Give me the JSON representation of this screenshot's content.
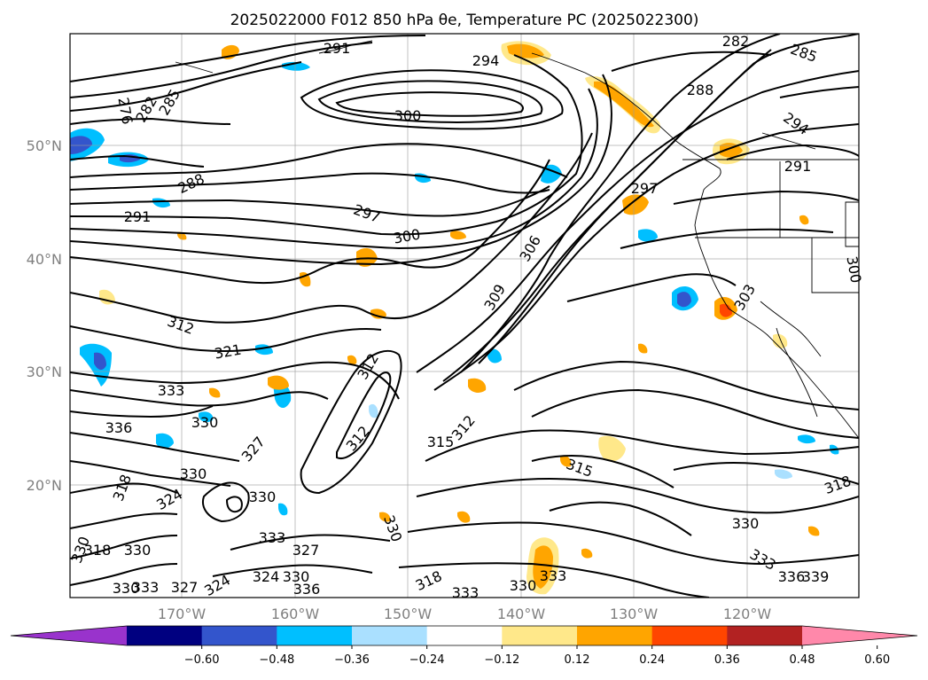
{
  "title": "2025022000 F012 850 hPa θe, Temperature PC (2025022300)",
  "map": {
    "lon_ticks": [
      "170°W",
      "160°W",
      "150°W",
      "140°W",
      "130°W",
      "120°W"
    ],
    "lat_ticks": [
      "50°N",
      "40°N",
      "30°N",
      "20°N"
    ],
    "contour_labels": [
      {
        "text": "291"
      },
      {
        "text": "282"
      },
      {
        "text": "285"
      },
      {
        "text": "294"
      },
      {
        "text": "288"
      },
      {
        "text": "300"
      },
      {
        "text": "294"
      },
      {
        "text": "276"
      },
      {
        "text": "282"
      },
      {
        "text": "285"
      },
      {
        "text": "291"
      },
      {
        "text": "288"
      },
      {
        "text": "291"
      },
      {
        "text": "297"
      },
      {
        "text": "297"
      },
      {
        "text": "300"
      },
      {
        "text": "306"
      },
      {
        "text": "300"
      },
      {
        "text": "309"
      },
      {
        "text": "303"
      },
      {
        "text": "312"
      },
      {
        "text": "321"
      },
      {
        "text": "312"
      },
      {
        "text": "333"
      },
      {
        "text": "336"
      },
      {
        "text": "330"
      },
      {
        "text": "312"
      },
      {
        "text": "315"
      },
      {
        "text": "312"
      },
      {
        "text": "315"
      },
      {
        "text": "327"
      },
      {
        "text": "330"
      },
      {
        "text": "318"
      },
      {
        "text": "330"
      },
      {
        "text": "318"
      },
      {
        "text": "324"
      },
      {
        "text": "330"
      },
      {
        "text": "333"
      },
      {
        "text": "327"
      },
      {
        "text": "330"
      },
      {
        "text": "330"
      },
      {
        "text": "333"
      },
      {
        "text": "336"
      },
      {
        "text": "339"
      },
      {
        "text": "318"
      },
      {
        "text": "330"
      },
      {
        "text": "324"
      },
      {
        "text": "330"
      },
      {
        "text": "336"
      },
      {
        "text": "324"
      },
      {
        "text": "327"
      },
      {
        "text": "318"
      },
      {
        "text": "333"
      },
      {
        "text": "330"
      },
      {
        "text": "333"
      },
      {
        "text": "333"
      },
      {
        "text": "330"
      }
    ]
  },
  "colorbar": {
    "ticks": [
      "−0.60",
      "−0.48",
      "−0.36",
      "−0.24",
      "−0.12",
      "0.12",
      "0.24",
      "0.36",
      "0.48",
      "0.60"
    ],
    "colors": [
      "#9933cc",
      "#000080",
      "#3355cc",
      "#00bfff",
      "#aae0ff",
      "#ffffff",
      "#ffe88a",
      "#ffa500",
      "#ff4500",
      "#b22222",
      "#ff88aa"
    ]
  }
}
